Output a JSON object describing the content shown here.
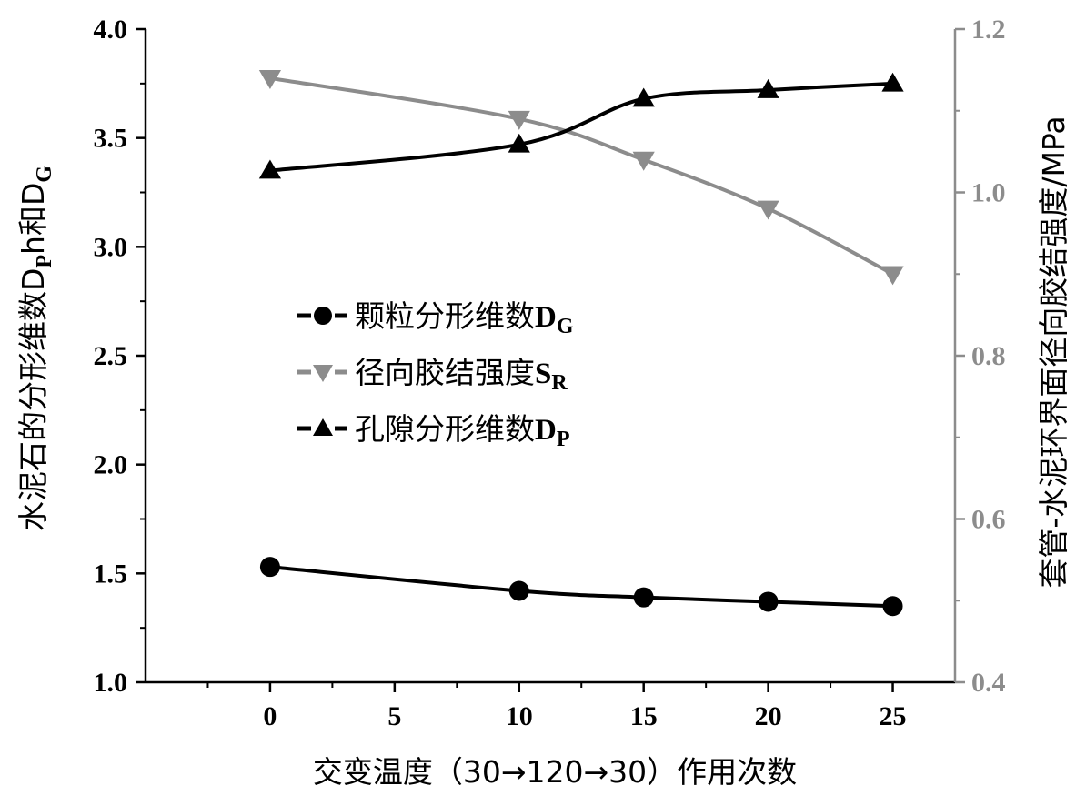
{
  "chart_data": {
    "type": "line",
    "title": "",
    "x": [
      0,
      10,
      15,
      20,
      25
    ],
    "xlabel": "交变温度（30→120→30）作用次数",
    "xlim": [
      -5,
      27.5
    ],
    "xticks": [
      0,
      5,
      10,
      15,
      20,
      25
    ],
    "ylabel_left": {
      "main": "水泥石的分形维数D",
      "sub1": "P",
      "mid": "h和D",
      "sub2": "G"
    },
    "ylim_left": [
      1.0,
      4.0
    ],
    "yticks_left": [
      "1.0",
      "1.5",
      "2.0",
      "2.5",
      "3.0",
      "3.5",
      "4.0"
    ],
    "ylabel_right": "套管-水泥环界面径向胶结强度/MPa",
    "ylim_right": [
      0.4,
      1.2
    ],
    "yticks_right": [
      "0.4",
      "0.6",
      "0.8",
      "1.0",
      "1.2"
    ],
    "grid": false,
    "legend_position": "center-left",
    "series": [
      {
        "name": "颗粒分形维数",
        "name_suffix": "D",
        "name_sub": "G",
        "axis": "left",
        "marker": "circle",
        "color": "#000000",
        "values": [
          1.53,
          1.42,
          1.39,
          1.37,
          1.35
        ]
      },
      {
        "name": "径向胶结强度",
        "name_suffix": "S",
        "name_sub": "R",
        "axis": "right",
        "marker": "triangle-down",
        "color": "#8c8c8c",
        "values": [
          1.14,
          1.09,
          1.04,
          0.98,
          0.9
        ]
      },
      {
        "name": "孔隙分形维数",
        "name_suffix": "D",
        "name_sub": "P",
        "axis": "left",
        "marker": "triangle-up",
        "color": "#000000",
        "values": [
          3.35,
          3.47,
          3.68,
          3.72,
          3.75
        ]
      }
    ]
  },
  "colors": {
    "axis_left": "#000000",
    "axis_right": "#8c8c8c"
  }
}
